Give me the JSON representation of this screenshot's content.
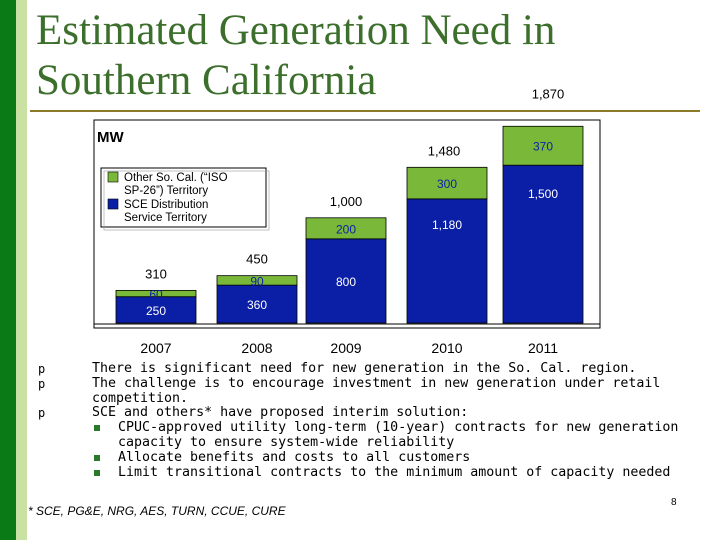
{
  "title": "Estimated Generation Need in Southern California",
  "chart_data": {
    "type": "bar",
    "stacked": true,
    "unit_label": "MW",
    "categories": [
      "2007",
      "2008",
      "2009",
      "2010",
      "2011"
    ],
    "series": [
      {
        "name": "SCE Distribution Service Territory",
        "values": [
          250,
          360,
          800,
          1180,
          1500
        ],
        "labels": [
          "250",
          "360",
          "800",
          "1,180",
          "1,500"
        ],
        "color": "#0b1fa6",
        "label_color": "#ffffff"
      },
      {
        "name": "Other So. Cal. (“ISO SP-26”) Territory",
        "values": [
          60,
          90,
          200,
          300,
          370
        ],
        "labels": [
          "60",
          "90",
          "200",
          "300",
          "370"
        ],
        "color": "#7ab83a",
        "label_color": "#0b1fa6"
      }
    ],
    "totals": [
      310,
      450,
      1000,
      1480,
      1870
    ],
    "total_labels": [
      "310",
      "450",
      "1,000",
      "1,480",
      "1,870"
    ],
    "legend": [
      {
        "label": "Other So. Cal. (“ISO SP-26”) Territory",
        "color": "#7ab83a"
      },
      {
        "label": "SCE Distribution Service Territory",
        "color": "#0b1fa6"
      }
    ],
    "legend_position": "top-left",
    "ylim": [
      0,
      2000
    ],
    "grid": false
  },
  "bullets": [
    {
      "marker": "p",
      "text": "There is significant need for new generation in the So. Cal. region."
    },
    {
      "marker": "p",
      "text": "The challenge is to encourage investment in new generation under retail competition."
    },
    {
      "marker": "p",
      "text": "SCE and others* have proposed interim solution:",
      "sub": [
        "CPUC-approved utility long-term (10-year) contracts for new generation capacity to ensure system-wide reliability",
        "Allocate benefits and costs to all customers",
        "Limit transitional contracts to the minimum amount of capacity needed"
      ]
    }
  ],
  "footnote": "* SCE, PG&E, NRG, AES, TURN, CCUE, CURE",
  "page_number": "8"
}
